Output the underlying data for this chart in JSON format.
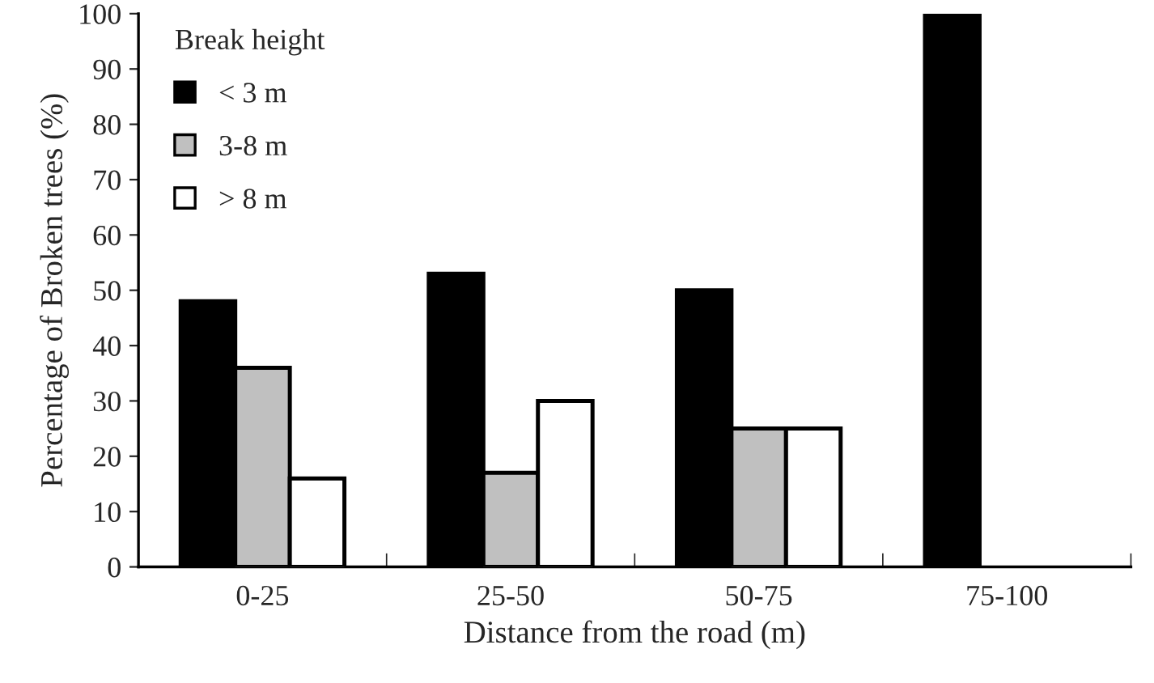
{
  "chart_data": {
    "type": "bar",
    "xlabel": "Distance from the road (m)",
    "ylabel": "Percentage of Broken trees (%)",
    "legend_title": "Break height",
    "categories": [
      "0-25",
      "25-50",
      "50-75",
      "75-100"
    ],
    "series": [
      {
        "name": "< 3 m",
        "color": "#000000",
        "values": [
          48,
          53,
          50,
          100
        ]
      },
      {
        "name": "3-8 m",
        "color": "#c0c0c0",
        "values": [
          36,
          17,
          25,
          null
        ]
      },
      {
        "name": "> 8 m",
        "color": "#ffffff",
        "values": [
          16,
          30,
          25,
          null
        ]
      }
    ],
    "ylim": [
      0,
      100
    ],
    "yticks": [
      0,
      10,
      20,
      30,
      40,
      50,
      60,
      70,
      80,
      90,
      100
    ],
    "grid": false,
    "legend": "top left"
  }
}
